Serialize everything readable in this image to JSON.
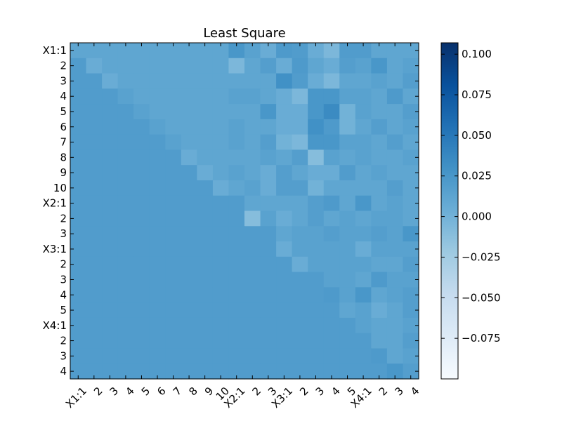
{
  "chart_data": {
    "type": "heatmap",
    "title": "Least Square",
    "row_labels": [
      "X1:1",
      "2",
      "3",
      "4",
      "5",
      "6",
      "7",
      "8",
      "9",
      "10",
      "X2:1",
      "2",
      "3",
      "X3:1",
      "2",
      "3",
      "4",
      "5",
      "X4:1",
      "2",
      "3",
      "4"
    ],
    "col_labels": [
      "X1:1",
      "2",
      "3",
      "4",
      "5",
      "6",
      "7",
      "8",
      "9",
      "10",
      "X2:1",
      "2",
      "3",
      "X3:1",
      "2",
      "3",
      "4",
      "5",
      "X4:1",
      "2",
      "3",
      "4"
    ],
    "lower_fill_value": 0.02,
    "values": [
      [
        0.011,
        0.011,
        0.011,
        0.011,
        0.011,
        0.011,
        0.011,
        0.011,
        0.011,
        0.011,
        0.025,
        0.015,
        0.005,
        0.022,
        0.02,
        0.005,
        -0.005,
        0.02,
        0.02,
        0.011,
        0.011,
        0.011
      ],
      [
        0.02,
        0.005,
        0.011,
        0.011,
        0.011,
        0.011,
        0.011,
        0.011,
        0.011,
        0.011,
        -0.005,
        0.011,
        0.018,
        0.005,
        0.022,
        0.011,
        0.005,
        0.018,
        0.015,
        0.025,
        0.011,
        0.015
      ],
      [
        0.02,
        0.02,
        0.005,
        0.011,
        0.011,
        0.011,
        0.011,
        0.011,
        0.011,
        0.011,
        0.011,
        0.011,
        0.011,
        0.03,
        0.02,
        0.005,
        -0.005,
        0.011,
        0.011,
        0.015,
        0.011,
        0.018
      ],
      [
        0.02,
        0.02,
        0.02,
        0.015,
        0.011,
        0.011,
        0.011,
        0.011,
        0.011,
        0.011,
        0.015,
        0.015,
        0.011,
        0.005,
        -0.005,
        0.025,
        0.025,
        0.015,
        0.015,
        0.011,
        0.022,
        0.011
      ],
      [
        0.02,
        0.02,
        0.02,
        0.02,
        0.015,
        0.011,
        0.011,
        0.011,
        0.011,
        0.011,
        0.011,
        0.011,
        0.025,
        0.005,
        0.005,
        0.025,
        0.035,
        0.0,
        0.015,
        0.011,
        0.011,
        0.018
      ],
      [
        0.02,
        0.02,
        0.02,
        0.02,
        0.02,
        0.015,
        0.011,
        0.011,
        0.011,
        0.011,
        0.015,
        0.011,
        0.011,
        0.005,
        0.005,
        0.03,
        0.022,
        0.0,
        0.011,
        0.018,
        0.011,
        0.015
      ],
      [
        0.02,
        0.02,
        0.02,
        0.02,
        0.02,
        0.02,
        0.015,
        0.011,
        0.011,
        0.011,
        0.015,
        0.011,
        0.018,
        0.0,
        -0.005,
        0.025,
        0.025,
        0.015,
        0.015,
        0.011,
        0.018,
        0.011
      ],
      [
        0.02,
        0.02,
        0.02,
        0.02,
        0.02,
        0.02,
        0.02,
        0.005,
        0.011,
        0.011,
        0.011,
        0.011,
        0.015,
        0.011,
        0.018,
        -0.01,
        0.015,
        0.011,
        0.015,
        0.011,
        0.011,
        0.015
      ],
      [
        0.02,
        0.02,
        0.02,
        0.02,
        0.02,
        0.02,
        0.02,
        0.02,
        0.005,
        0.011,
        0.015,
        0.011,
        0.005,
        0.018,
        0.011,
        0.005,
        0.005,
        0.02,
        0.011,
        0.015,
        0.011,
        0.011
      ],
      [
        0.02,
        0.02,
        0.02,
        0.02,
        0.02,
        0.02,
        0.02,
        0.02,
        0.02,
        0.005,
        0.011,
        0.015,
        0.005,
        0.018,
        0.018,
        0.0,
        0.011,
        0.011,
        0.011,
        0.011,
        0.018,
        0.011
      ],
      [
        0.02,
        0.02,
        0.02,
        0.02,
        0.02,
        0.02,
        0.02,
        0.02,
        0.02,
        0.02,
        0.02,
        0.011,
        0.011,
        0.011,
        0.011,
        0.018,
        0.022,
        0.011,
        0.025,
        0.011,
        0.015,
        0.011
      ],
      [
        0.02,
        0.02,
        0.02,
        0.02,
        0.02,
        0.02,
        0.02,
        0.02,
        0.02,
        0.02,
        0.02,
        -0.01,
        0.015,
        0.005,
        0.011,
        0.018,
        0.011,
        0.015,
        0.011,
        0.015,
        0.015,
        0.011
      ],
      [
        0.02,
        0.02,
        0.02,
        0.02,
        0.02,
        0.02,
        0.02,
        0.02,
        0.02,
        0.02,
        0.02,
        0.02,
        0.02,
        0.011,
        0.015,
        0.015,
        0.018,
        0.015,
        0.015,
        0.018,
        0.015,
        0.025
      ],
      [
        0.02,
        0.02,
        0.02,
        0.02,
        0.02,
        0.02,
        0.02,
        0.02,
        0.02,
        0.02,
        0.02,
        0.02,
        0.02,
        0.005,
        0.015,
        0.015,
        0.015,
        0.015,
        0.005,
        0.015,
        0.015,
        0.015
      ],
      [
        0.02,
        0.02,
        0.02,
        0.02,
        0.02,
        0.02,
        0.02,
        0.02,
        0.02,
        0.02,
        0.02,
        0.02,
        0.02,
        0.02,
        0.005,
        0.015,
        0.015,
        0.015,
        0.015,
        0.011,
        0.011,
        0.018
      ],
      [
        0.02,
        0.02,
        0.02,
        0.02,
        0.02,
        0.02,
        0.02,
        0.02,
        0.02,
        0.02,
        0.02,
        0.02,
        0.02,
        0.02,
        0.02,
        0.02,
        0.015,
        0.015,
        0.011,
        0.022,
        0.015,
        0.015
      ],
      [
        0.02,
        0.02,
        0.02,
        0.02,
        0.02,
        0.02,
        0.02,
        0.02,
        0.02,
        0.02,
        0.02,
        0.02,
        0.02,
        0.02,
        0.02,
        0.02,
        0.022,
        0.015,
        0.025,
        0.011,
        0.015,
        0.018
      ],
      [
        0.02,
        0.02,
        0.02,
        0.02,
        0.02,
        0.02,
        0.02,
        0.02,
        0.02,
        0.02,
        0.02,
        0.02,
        0.02,
        0.02,
        0.02,
        0.02,
        0.02,
        0.011,
        0.015,
        0.005,
        0.011,
        0.018
      ],
      [
        0.02,
        0.02,
        0.02,
        0.02,
        0.02,
        0.02,
        0.02,
        0.02,
        0.02,
        0.02,
        0.02,
        0.02,
        0.02,
        0.02,
        0.02,
        0.02,
        0.02,
        0.02,
        0.015,
        0.011,
        0.011,
        0.015
      ],
      [
        0.02,
        0.02,
        0.02,
        0.02,
        0.02,
        0.02,
        0.02,
        0.02,
        0.02,
        0.02,
        0.02,
        0.02,
        0.02,
        0.02,
        0.02,
        0.02,
        0.02,
        0.02,
        0.02,
        0.011,
        0.011,
        0.018
      ],
      [
        0.02,
        0.02,
        0.02,
        0.02,
        0.02,
        0.02,
        0.02,
        0.02,
        0.02,
        0.02,
        0.02,
        0.02,
        0.02,
        0.02,
        0.02,
        0.02,
        0.02,
        0.02,
        0.02,
        0.022,
        0.011,
        0.015
      ],
      [
        0.02,
        0.02,
        0.02,
        0.02,
        0.02,
        0.02,
        0.02,
        0.02,
        0.02,
        0.02,
        0.02,
        0.02,
        0.02,
        0.02,
        0.02,
        0.02,
        0.02,
        0.02,
        0.02,
        0.02,
        0.025,
        0.018
      ]
    ],
    "colorbar": {
      "min": -0.1,
      "max": 0.107,
      "ticks": [
        0.1,
        0.075,
        0.05,
        0.025,
        0.0,
        -0.025,
        -0.05,
        -0.075
      ],
      "tick_labels": [
        "0.100",
        "0.075",
        "0.050",
        "0.025",
        "0.000",
        "−0.025",
        "−0.050",
        "−0.075"
      ],
      "colormap": "Blues"
    }
  }
}
